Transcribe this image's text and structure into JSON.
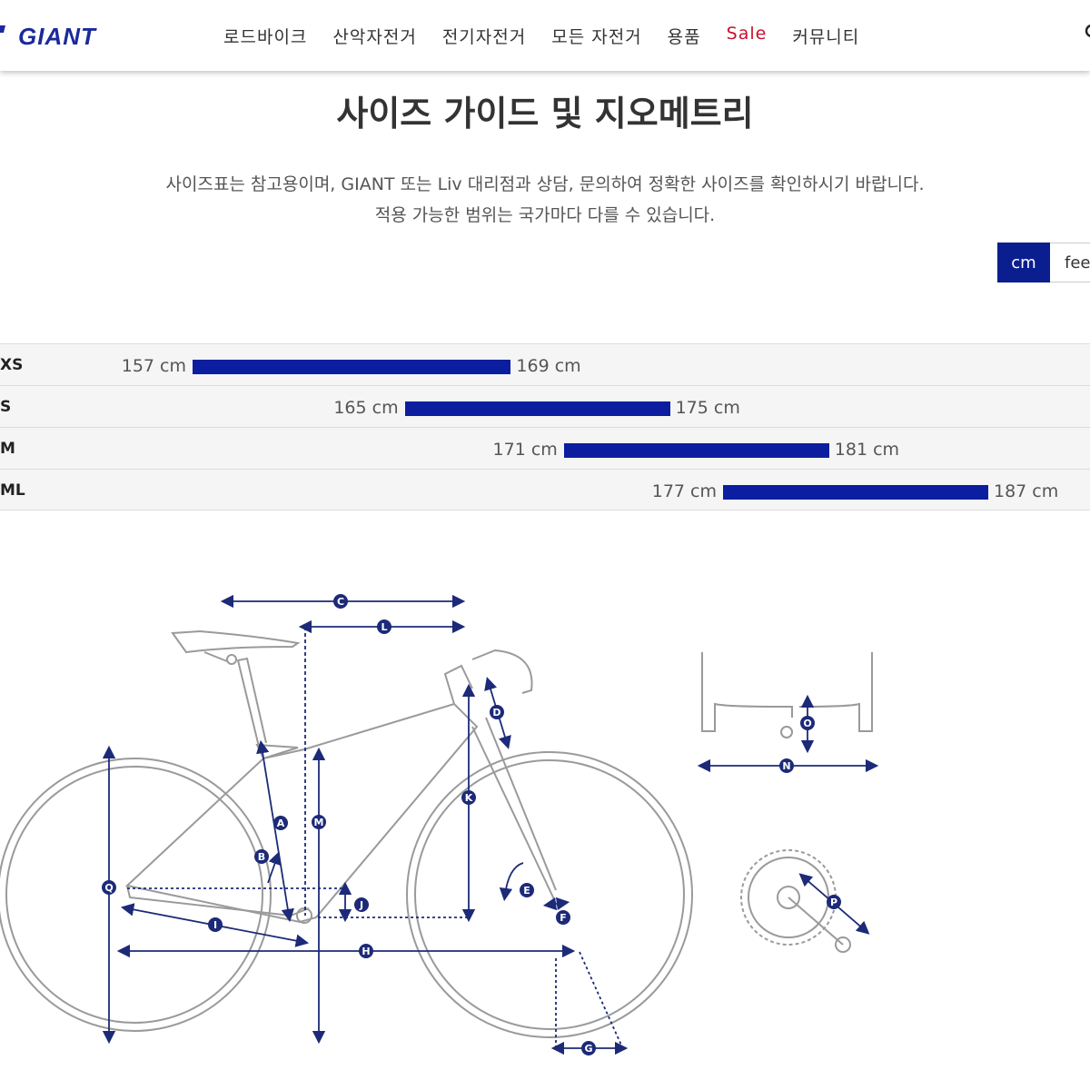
{
  "brand": {
    "logo_text": "GIANT",
    "accent_color": "#0b1e8f",
    "bar_color": "#0b1ea0",
    "sale_color": "#c8102e"
  },
  "nav": {
    "items": [
      "로드바이크",
      "산악자전거",
      "전기자전거",
      "모든 자전거",
      "용품",
      "Sale",
      "커뮤니티"
    ],
    "search_icon": "search-icon"
  },
  "page": {
    "title": "사이즈 가이드 및 지오메트리",
    "description_line1": "사이즈표는 참고용이며, GIANT 또는 Liv 대리점과 상담, 문의하여 정확한 사이즈를 확인하시기 바랍니다.",
    "description_line2": "적용 가능한 범위는 국가마다 다를 수 있습니다."
  },
  "units": {
    "options": [
      "cm",
      "feet"
    ],
    "selected": "cm"
  },
  "chart_data": {
    "type": "bar",
    "title": "",
    "unit": "cm",
    "xlim": [
      145,
      195
    ],
    "categories": [
      "XS",
      "S",
      "M",
      "ML"
    ],
    "ranges": [
      {
        "size": "XS",
        "low": 157,
        "high": 169,
        "low_label": "157 cm",
        "high_label": "169 cm"
      },
      {
        "size": "S",
        "low": 165,
        "high": 175,
        "low_label": "165 cm",
        "high_label": "175 cm"
      },
      {
        "size": "M",
        "low": 171,
        "high": 181,
        "low_label": "171 cm",
        "high_label": "181 cm"
      },
      {
        "size": "ML",
        "low": 177,
        "high": 187,
        "low_label": "177 cm",
        "high_label": "187 cm"
      }
    ]
  },
  "geometry": {
    "labels": [
      "A",
      "B",
      "C",
      "D",
      "E",
      "F",
      "G",
      "H",
      "I",
      "J",
      "K",
      "L",
      "M",
      "N",
      "O",
      "P",
      "Q"
    ],
    "diagram_color": "#1c2a78"
  }
}
